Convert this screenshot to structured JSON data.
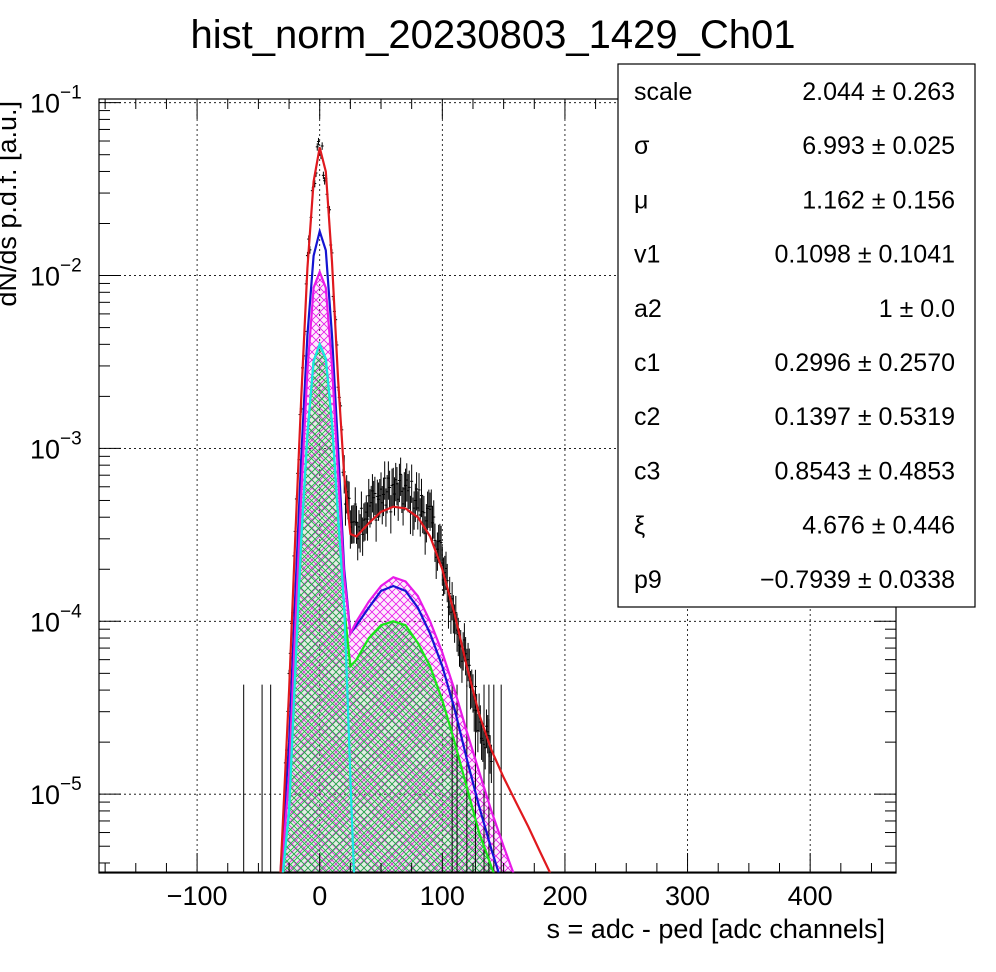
{
  "chart_data": {
    "type": "line",
    "title": "hist_norm_20230803_1429_Ch01",
    "xlabel": "s = adc - ped [adc channels]",
    "ylabel": "dN/ds p.d.f. [a.u.]",
    "xlim": [
      -180,
      470
    ],
    "ylim": [
      3.5e-06,
      0.105
    ],
    "yscale": "log",
    "grid": true,
    "x_ticks": [
      {
        "value": -100,
        "label": "−100"
      },
      {
        "value": 0,
        "label": "0"
      },
      {
        "value": 100,
        "label": "100"
      },
      {
        "value": 200,
        "label": "200"
      },
      {
        "value": 300,
        "label": "300"
      },
      {
        "value": 400,
        "label": "400"
      }
    ],
    "y_ticks": [
      {
        "value": 1e-05,
        "base": "10",
        "exp": "−5"
      },
      {
        "value": 0.0001,
        "base": "10",
        "exp": "−4"
      },
      {
        "value": 0.001,
        "base": "10",
        "exp": "−3"
      },
      {
        "value": 0.01,
        "base": "10",
        "exp": "−2"
      },
      {
        "value": 0.1,
        "base": "10",
        "exp": "−1"
      }
    ],
    "fit_total": {
      "color": "#e0191e",
      "points": [
        [
          -32,
          3.5e-06
        ],
        [
          -25,
          4e-05
        ],
        [
          -20,
          0.0003
        ],
        [
          -15,
          0.002
        ],
        [
          -10,
          0.011
        ],
        [
          -5,
          0.035
        ],
        [
          0,
          0.055
        ],
        [
          5,
          0.04
        ],
        [
          10,
          0.012
        ],
        [
          15,
          0.0025
        ],
        [
          20,
          0.0007
        ],
        [
          25,
          0.00032
        ],
        [
          30,
          0.00031
        ],
        [
          40,
          0.00037
        ],
        [
          50,
          0.00043
        ],
        [
          60,
          0.00046
        ],
        [
          70,
          0.00045
        ],
        [
          80,
          0.0004
        ],
        [
          90,
          0.00031
        ],
        [
          100,
          0.0002
        ],
        [
          110,
          0.00011
        ],
        [
          120,
          5.5e-05
        ],
        [
          130,
          2.9e-05
        ],
        [
          140,
          1.8e-05
        ],
        [
          150,
          1.25e-05
        ],
        [
          160,
          9e-06
        ],
        [
          170,
          6.5e-06
        ],
        [
          180,
          4.6e-06
        ],
        [
          188,
          3.5e-06
        ]
      ]
    },
    "components": [
      {
        "color": "#1414d2",
        "fill": "none",
        "points": [
          [
            -32,
            3.5e-06
          ],
          [
            -25,
            2e-05
          ],
          [
            -20,
            0.00014
          ],
          [
            -15,
            0.0009
          ],
          [
            -10,
            0.0045
          ],
          [
            -5,
            0.013
          ],
          [
            0,
            0.018
          ],
          [
            5,
            0.014
          ],
          [
            10,
            0.0045
          ],
          [
            15,
            0.001
          ],
          [
            20,
            0.0002
          ],
          [
            25,
            8.5e-05
          ],
          [
            30,
            9.5e-05
          ],
          [
            40,
            0.00012
          ],
          [
            50,
            0.00015
          ],
          [
            60,
            0.00016
          ],
          [
            70,
            0.00015
          ],
          [
            80,
            0.00012
          ],
          [
            90,
            8.5e-05
          ],
          [
            100,
            5.5e-05
          ],
          [
            110,
            3.1e-05
          ],
          [
            120,
            1.6e-05
          ],
          [
            130,
            8.5e-06
          ],
          [
            140,
            4.8e-06
          ],
          [
            146,
            3.5e-06
          ]
        ]
      },
      {
        "color": "#e81ae8",
        "fill": "#e81ae8",
        "points": [
          [
            -31,
            3.5e-06
          ],
          [
            -25,
            1.3e-05
          ],
          [
            -20,
            9e-05
          ],
          [
            -15,
            0.00055
          ],
          [
            -10,
            0.0028
          ],
          [
            -5,
            0.0085
          ],
          [
            0,
            0.0105
          ],
          [
            5,
            0.0085
          ],
          [
            10,
            0.003
          ],
          [
            15,
            0.0007
          ],
          [
            20,
            0.00018
          ],
          [
            25,
            8.5e-05
          ],
          [
            30,
            0.0001
          ],
          [
            40,
            0.00013
          ],
          [
            50,
            0.00016
          ],
          [
            60,
            0.00018
          ],
          [
            70,
            0.00017
          ],
          [
            80,
            0.00014
          ],
          [
            90,
            0.0001
          ],
          [
            100,
            6.6e-05
          ],
          [
            110,
            4e-05
          ],
          [
            120,
            2.3e-05
          ],
          [
            130,
            1.35e-05
          ],
          [
            140,
            8e-06
          ],
          [
            150,
            5e-06
          ],
          [
            158,
            3.5e-06
          ]
        ]
      },
      {
        "color": "#19e619",
        "fill": "#19e619",
        "points": [
          [
            -30,
            3.5e-06
          ],
          [
            -25,
            8e-06
          ],
          [
            -20,
            5e-05
          ],
          [
            -15,
            0.0003
          ],
          [
            -10,
            0.0012
          ],
          [
            -5,
            0.0032
          ],
          [
            0,
            0.004
          ],
          [
            5,
            0.0033
          ],
          [
            10,
            0.0014
          ],
          [
            15,
            0.0004
          ],
          [
            20,
            0.00012
          ],
          [
            25,
            5.5e-05
          ],
          [
            30,
            6e-05
          ],
          [
            40,
            8e-05
          ],
          [
            50,
            9.5e-05
          ],
          [
            60,
            0.0001
          ],
          [
            70,
            9.5e-05
          ],
          [
            80,
            7.5e-05
          ],
          [
            90,
            5.5e-05
          ],
          [
            100,
            3.5e-05
          ],
          [
            110,
            2e-05
          ],
          [
            120,
            1.1e-05
          ],
          [
            130,
            6e-06
          ],
          [
            140,
            3.8e-06
          ],
          [
            142,
            3.5e-06
          ]
        ]
      },
      {
        "color": "#19e6e6",
        "fill": "none",
        "points": [
          [
            -30,
            3.5e-06
          ],
          [
            -25,
            8e-06
          ],
          [
            -20,
            5e-05
          ],
          [
            -15,
            0.0003
          ],
          [
            -10,
            0.0012
          ],
          [
            -5,
            0.0032
          ],
          [
            0,
            0.004
          ],
          [
            5,
            0.0033
          ],
          [
            10,
            0.0014
          ],
          [
            15,
            0.0004
          ],
          [
            20,
            0.00012
          ],
          [
            22,
            5e-05
          ],
          [
            24,
            2e-05
          ],
          [
            26,
            8e-06
          ],
          [
            28,
            3.5e-06
          ]
        ]
      }
    ],
    "stats": [
      {
        "name": "scale",
        "value": "2.044 ± 0.263"
      },
      {
        "name": "σ",
        "value": "6.993 ± 0.025"
      },
      {
        "name": "μ",
        "value": "1.162 ± 0.156"
      },
      {
        "name": "v1",
        "value": "0.1098 ± 0.1041"
      },
      {
        "name": "a2",
        "value": "1 ± 0.0"
      },
      {
        "name": "c1",
        "value": "0.2996 ± 0.2570"
      },
      {
        "name": "c2",
        "value": "0.1397 ± 0.5319"
      },
      {
        "name": "c3",
        "value": "0.8543 ± 0.4853"
      },
      {
        "name": "ξ",
        "value": "4.676 ± 0.446"
      },
      {
        "name": "p9",
        "value": "−0.7939 ± 0.0338"
      }
    ],
    "colors": {
      "data": "#000000",
      "frame": "#000000",
      "grid": "#000000"
    }
  }
}
